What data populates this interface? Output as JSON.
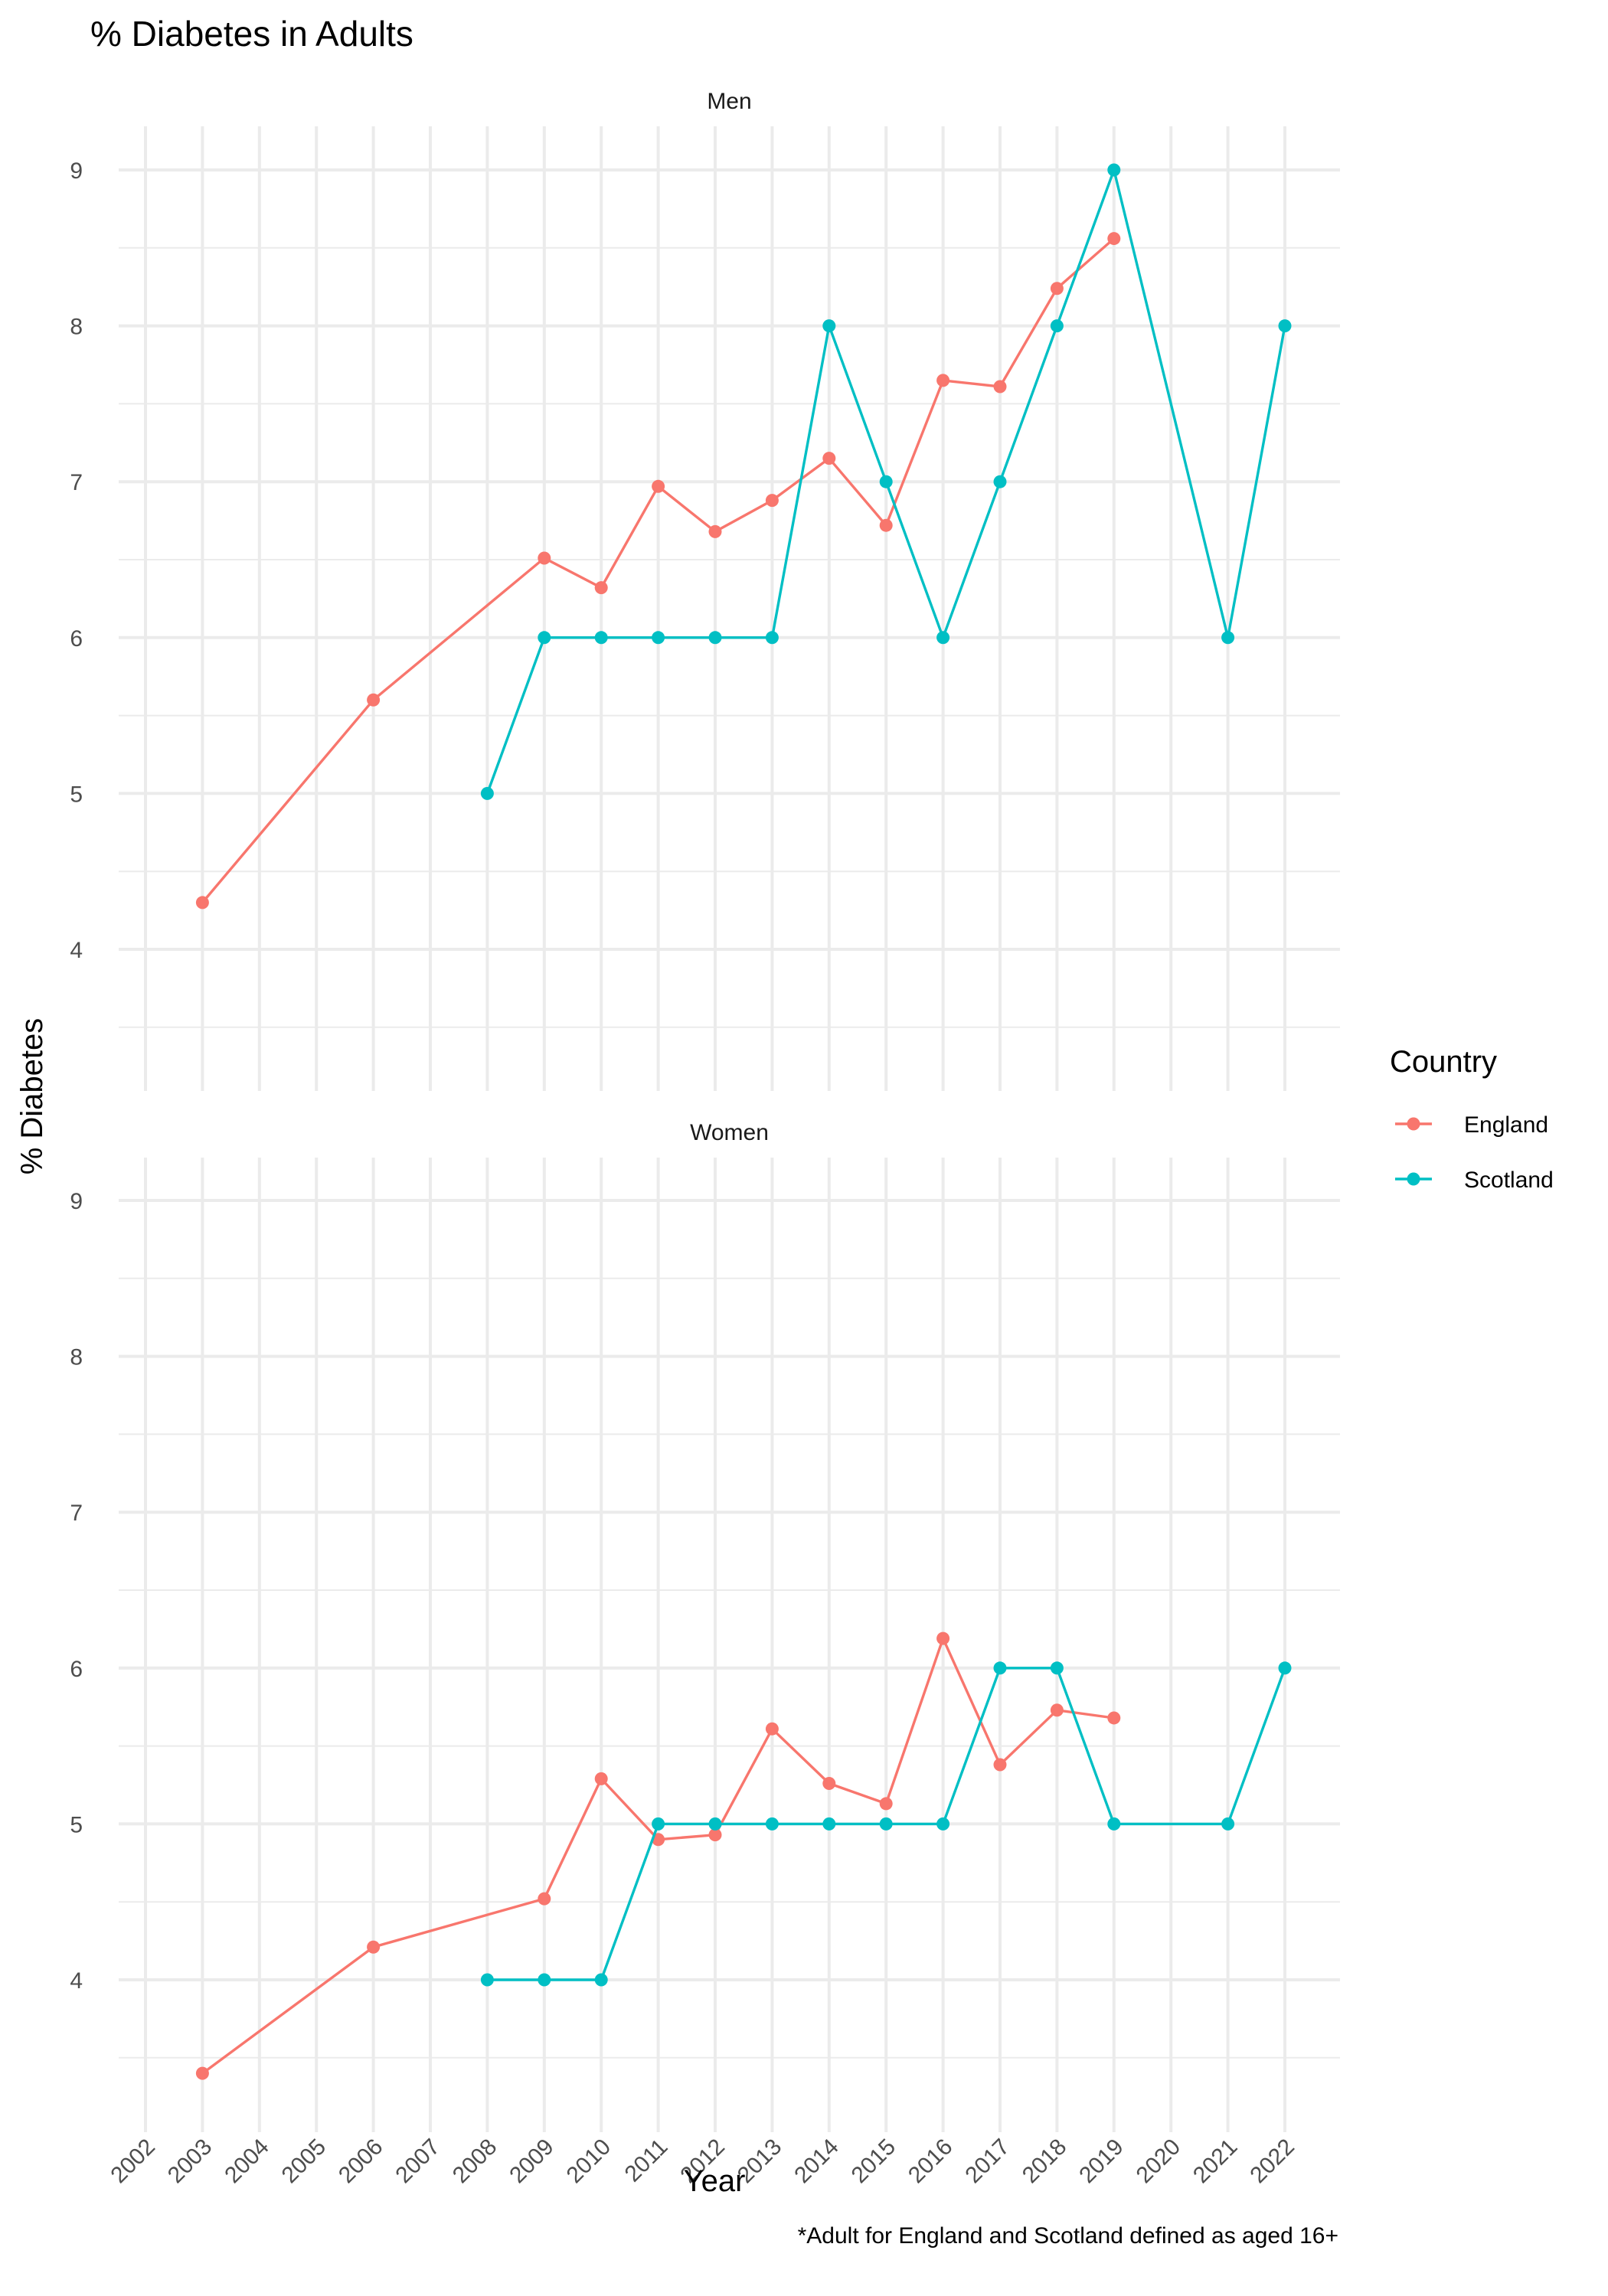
{
  "chart_data": {
    "type": "line",
    "title": "% Diabetes in Adults",
    "xlabel": "Year",
    "ylabel": "% Diabetes",
    "caption": "*Adult for England and Scotland defined as aged 16+",
    "x_ticks": [
      "2002",
      "2003",
      "2004",
      "2005",
      "2006",
      "2007",
      "2008",
      "2009",
      "2010",
      "2011",
      "2012",
      "2013",
      "2014",
      "2015",
      "2016",
      "2017",
      "2018",
      "2019",
      "2020",
      "2021",
      "2022"
    ],
    "y_ticks": [
      "4",
      "5",
      "6",
      "7",
      "8",
      "9"
    ],
    "ylim": [
      3.15,
      9.3
    ],
    "grid": true,
    "legend": {
      "title": "Country",
      "placement": "right",
      "entries": [
        {
          "name": "England",
          "color": "#F8766D"
        },
        {
          "name": "Scotland",
          "color": "#00BFC4"
        }
      ]
    },
    "facets": [
      {
        "label": "Men",
        "series": [
          {
            "name": "England",
            "x": [
              2003,
              2006,
              2009,
              2010,
              2011,
              2012,
              2013,
              2014,
              2015,
              2016,
              2017,
              2018,
              2019
            ],
            "values": [
              4.3,
              5.6,
              6.51,
              6.32,
              6.97,
              6.68,
              6.88,
              7.15,
              6.72,
              7.65,
              7.61,
              8.24,
              8.56
            ]
          },
          {
            "name": "Scotland",
            "x": [
              2008,
              2009,
              2010,
              2011,
              2012,
              2013,
              2014,
              2015,
              2016,
              2017,
              2018,
              2019,
              2021,
              2022
            ],
            "values": [
              5,
              6,
              6,
              6,
              6,
              6,
              8,
              7,
              6,
              7,
              8,
              9,
              6,
              8
            ]
          }
        ]
      },
      {
        "label": "Women",
        "series": [
          {
            "name": "England",
            "x": [
              2003,
              2006,
              2009,
              2010,
              2011,
              2012,
              2013,
              2014,
              2015,
              2016,
              2017,
              2018,
              2019
            ],
            "values": [
              3.4,
              4.21,
              4.52,
              5.29,
              4.9,
              4.93,
              5.61,
              5.26,
              5.13,
              6.19,
              5.38,
              5.73,
              5.68
            ]
          },
          {
            "name": "Scotland",
            "x": [
              2008,
              2009,
              2010,
              2011,
              2012,
              2013,
              2014,
              2015,
              2016,
              2017,
              2018,
              2019,
              2021,
              2022
            ],
            "values": [
              4,
              4,
              4,
              5,
              5,
              5,
              5,
              5,
              5,
              6,
              6,
              5,
              5,
              6
            ]
          }
        ]
      }
    ]
  }
}
